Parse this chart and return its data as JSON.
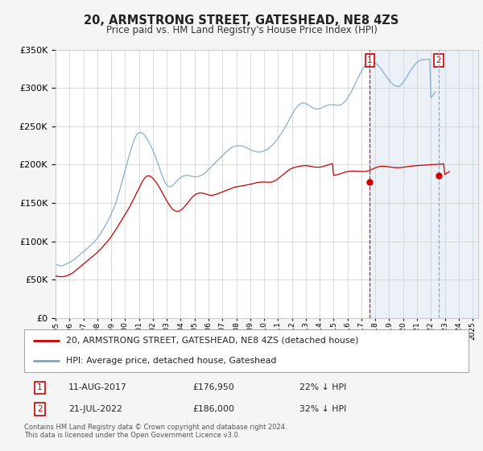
{
  "title": "20, ARMSTRONG STREET, GATESHEAD, NE8 4ZS",
  "subtitle": "Price paid vs. HM Land Registry's House Price Index (HPI)",
  "legend_line1": "20, ARMSTRONG STREET, GATESHEAD, NE8 4ZS (detached house)",
  "legend_line2": "HPI: Average price, detached house, Gateshead",
  "annotation1_label": "1",
  "annotation1_date": "11-AUG-2017",
  "annotation1_price": "£176,950",
  "annotation1_hpi": "22% ↓ HPI",
  "annotation1_year": 2017.61,
  "annotation1_value": 176950,
  "annotation2_label": "2",
  "annotation2_date": "21-JUL-2022",
  "annotation2_price": "£186,000",
  "annotation2_hpi": "32% ↓ HPI",
  "annotation2_year": 2022.55,
  "annotation2_value": 186000,
  "red_color": "#cc0000",
  "blue_color": "#7ba7cc",
  "shade_color": "#ddeeff",
  "background_color": "#f5f5f5",
  "plot_bg_color": "#ffffff",
  "ylim": [
    0,
    350000
  ],
  "xlim_start": 1995.0,
  "xlim_end": 2025.4,
  "hpi_monthly": {
    "start_year": 1995.0,
    "step": 0.08333,
    "values": [
      70000,
      69500,
      69000,
      68500,
      68000,
      67800,
      68200,
      68800,
      69500,
      70200,
      71000,
      71800,
      72500,
      73200,
      74000,
      75000,
      76200,
      77500,
      78800,
      80000,
      81200,
      82500,
      83800,
      85000,
      86200,
      87500,
      88800,
      90000,
      91500,
      93000,
      94500,
      96000,
      97500,
      99000,
      100500,
      102000,
      104000,
      106000,
      108000,
      110500,
      113000,
      115500,
      118000,
      120500,
      123000,
      126000,
      129000,
      132000,
      135500,
      139000,
      142500,
      146000,
      150000,
      155000,
      160000,
      165000,
      170000,
      175500,
      181000,
      186500,
      192000,
      197500,
      203000,
      208500,
      214000,
      219000,
      224000,
      228500,
      232500,
      236000,
      238800,
      240500,
      241500,
      241800,
      241500,
      240800,
      239500,
      237800,
      235800,
      233500,
      231000,
      228200,
      225200,
      222000,
      218600,
      215000,
      211200,
      207200,
      203000,
      198800,
      194500,
      190200,
      186000,
      182000,
      178500,
      175500,
      173500,
      172000,
      171200,
      171000,
      171500,
      172500,
      174000,
      175800,
      177500,
      179000,
      180500,
      182000,
      183200,
      184200,
      185000,
      185500,
      185800,
      186000,
      186000,
      185800,
      185500,
      185100,
      184700,
      184300,
      184000,
      184000,
      184200,
      184600,
      185000,
      185500,
      186200,
      187000,
      188000,
      189200,
      190500,
      192000,
      193500,
      195000,
      196500,
      198000,
      199500,
      201000,
      202500,
      204000,
      205500,
      207000,
      208500,
      210000,
      211500,
      213000,
      214500,
      216000,
      217500,
      218800,
      220000,
      221200,
      222200,
      223000,
      223600,
      224000,
      224300,
      224500,
      224600,
      224600,
      224500,
      224200,
      223800,
      223300,
      222700,
      222000,
      221200,
      220400,
      219600,
      218900,
      218300,
      217800,
      217400,
      217000,
      216700,
      216500,
      216500,
      216700,
      217000,
      217500,
      218000,
      218600,
      219400,
      220300,
      221300,
      222500,
      223800,
      225200,
      226800,
      228500,
      230300,
      232200,
      234200,
      236300,
      238500,
      240800,
      243200,
      245700,
      248300,
      251000,
      253800,
      256700,
      259600,
      262500,
      265200,
      267800,
      270200,
      272500,
      274500,
      276300,
      277800,
      279000,
      279800,
      280300,
      280500,
      280300,
      279800,
      279100,
      278200,
      277100,
      276000,
      275000,
      274100,
      273400,
      272900,
      272600,
      272500,
      272600,
      273000,
      273500,
      274200,
      275000,
      275800,
      276500,
      277100,
      277600,
      277900,
      278100,
      278200,
      278200,
      278100,
      277900,
      277700,
      277600,
      277500,
      277600,
      278000,
      278700,
      279700,
      281000,
      282600,
      284500,
      286600,
      289000,
      291500,
      294200,
      297000,
      300000,
      303100,
      306300,
      309500,
      312700,
      315800,
      318800,
      321600,
      324200,
      326500,
      328600,
      330400,
      331800,
      332900,
      333700,
      334100,
      334200,
      334000,
      333500,
      332600,
      331500,
      330100,
      328500,
      326700,
      324700,
      322600,
      320400,
      318200,
      316000,
      313900,
      311900,
      310000,
      308200,
      306600,
      305200,
      304000,
      303000,
      302300,
      302000,
      302100,
      302700,
      303700,
      305200,
      307000,
      309200,
      311500,
      314000,
      316600,
      319100,
      321600,
      324000,
      326200,
      328300,
      330100,
      331800,
      333200,
      334400,
      335400,
      336100,
      336600,
      336900,
      337000,
      337100,
      337100,
      337200,
      337300,
      337500,
      287000,
      289000,
      291000,
      293000,
      295000
    ]
  },
  "price_paid_monthly": {
    "start_year": 1995.0,
    "step": 0.08333,
    "values": [
      55000,
      54500,
      54200,
      54000,
      53800,
      53700,
      53800,
      54000,
      54300,
      54700,
      55200,
      55800,
      56500,
      57200,
      58000,
      59000,
      60200,
      61500,
      62800,
      64000,
      65200,
      66500,
      67800,
      69000,
      70200,
      71500,
      72800,
      74000,
      75200,
      76500,
      77800,
      79000,
      80200,
      81500,
      82800,
      84000,
      85500,
      87000,
      88500,
      90000,
      91500,
      93200,
      95000,
      96800,
      98500,
      100200,
      102000,
      104000,
      106000,
      108200,
      110500,
      112800,
      115000,
      117500,
      120000,
      122500,
      125000,
      127500,
      130000,
      132500,
      135000,
      137500,
      140000,
      142500,
      145000,
      148000,
      151000,
      154000,
      157000,
      160000,
      163000,
      166000,
      169000,
      172000,
      175000,
      178000,
      180500,
      182500,
      184000,
      185000,
      185500,
      185200,
      184500,
      183500,
      182200,
      180500,
      178500,
      176500,
      174200,
      171800,
      169200,
      166500,
      163800,
      161000,
      158200,
      155500,
      152800,
      150200,
      147800,
      145600,
      143700,
      142000,
      140700,
      139800,
      139200,
      139000,
      139200,
      139700,
      140500,
      141600,
      143000,
      144600,
      146200,
      148000,
      150000,
      152000,
      154000,
      155800,
      157500,
      159000,
      160200,
      161200,
      162000,
      162500,
      162800,
      163000,
      163000,
      162800,
      162500,
      162000,
      161500,
      161000,
      160600,
      160200,
      160000,
      160000,
      160200,
      160600,
      161000,
      161500,
      162000,
      162600,
      163200,
      163800,
      164400,
      165000,
      165600,
      166200,
      166800,
      167400,
      168000,
      168600,
      169200,
      169700,
      170200,
      170700,
      171000,
      171300,
      171600,
      171800,
      172000,
      172200,
      172500,
      172800,
      173100,
      173400,
      173700,
      174000,
      174300,
      174700,
      175100,
      175500,
      175900,
      176200,
      176500,
      176800,
      177000,
      177200,
      177300,
      177400,
      177400,
      177300,
      177200,
      177000,
      176950,
      177000,
      177200,
      177500,
      178000,
      178700,
      179500,
      180500,
      181600,
      182800,
      184000,
      185200,
      186400,
      187700,
      188900,
      190200,
      191400,
      192500,
      193600,
      194500,
      195200,
      195800,
      196300,
      196700,
      197100,
      197400,
      197700,
      198000,
      198200,
      198400,
      198600,
      198700,
      198700,
      198600,
      198400,
      198100,
      197800,
      197500,
      197200,
      197000,
      196800,
      196700,
      196600,
      196600,
      196700,
      196900,
      197200,
      197600,
      198000,
      198500,
      199000,
      199500,
      200000,
      200500,
      201000,
      201500,
      186000,
      186200,
      186500,
      186800,
      187200,
      187700,
      188200,
      188700,
      189200,
      189700,
      190200,
      190600,
      190900,
      191200,
      191400,
      191500,
      191600,
      191600,
      191600,
      191500,
      191400,
      191300,
      191200,
      191100,
      191000,
      191000,
      191000,
      191100,
      191300,
      191600,
      192000,
      192500,
      193100,
      193800,
      194500,
      195200,
      195800,
      196400,
      196900,
      197300,
      197600,
      197800,
      197900,
      197900,
      197800,
      197600,
      197400,
      197200,
      196900,
      196700,
      196500,
      196300,
      196200,
      196100,
      196000,
      196000,
      196000,
      196100,
      196200,
      196400,
      196600,
      196800,
      197000,
      197200,
      197500,
      197700,
      197900,
      198100,
      198300,
      198400,
      198500,
      198600,
      198700,
      198800,
      198900,
      199000,
      199100,
      199200,
      199300,
      199400,
      199500,
      199600,
      199700,
      199800,
      199900,
      200000,
      200100,
      200200,
      200300,
      200400,
      200500,
      200600,
      200700,
      200800,
      200900,
      201000,
      187000,
      188000,
      189000,
      190000,
      191000
    ]
  }
}
